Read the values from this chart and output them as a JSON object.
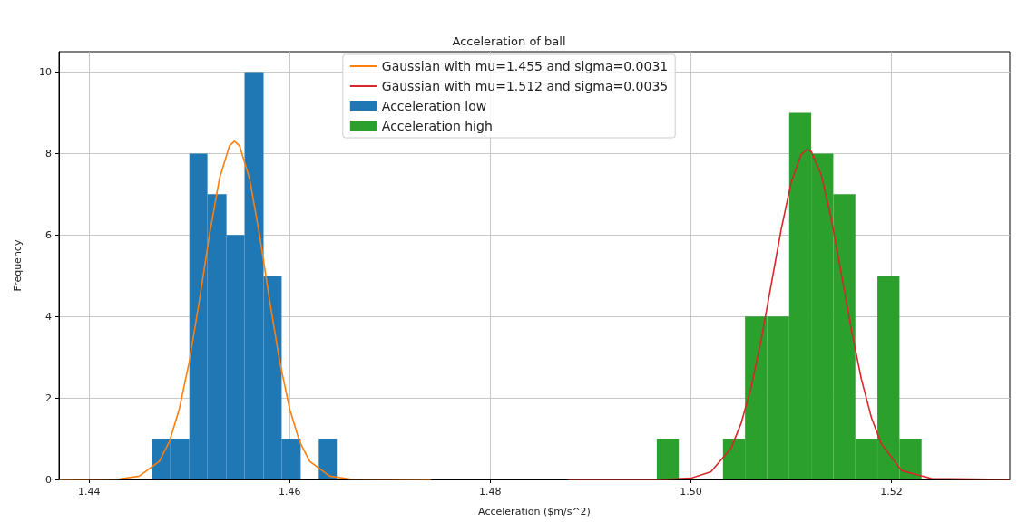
{
  "chart_data": {
    "type": "histogram",
    "title": "Acceleration of ball",
    "xlabel": "Acceleration ($m/s^2)",
    "ylabel": "Frequency",
    "xlim": [
      1.437,
      1.5318
    ],
    "xticks": [
      1.44,
      1.46,
      1.48,
      {
        "value": 1.5,
        "label": "1.50"
      },
      1.52
    ],
    "ylim": [
      0,
      10.5
    ],
    "yticks": [
      0,
      2,
      4,
      6,
      8,
      10
    ],
    "grid": true,
    "legend": "top",
    "series": [
      {
        "type": "line",
        "name": "Gaussian with mu=1.455 and sigma=0.0031",
        "color": "#ff7f0e",
        "x": [
          1.437,
          1.443,
          1.445,
          1.447,
          1.448,
          1.449,
          1.45,
          1.451,
          1.452,
          1.453,
          1.454,
          1.4545,
          1.455,
          1.456,
          1.457,
          1.458,
          1.459,
          1.46,
          1.461,
          1.462,
          1.464,
          1.466,
          1.4741
        ],
        "values": [
          0,
          0.01,
          0.08,
          0.44,
          0.92,
          1.73,
          2.9,
          4.39,
          6,
          7.38,
          8.19,
          8.3,
          8.19,
          7.38,
          6,
          4.39,
          2.9,
          1.73,
          0.92,
          0.44,
          0.08,
          0.01,
          0
        ]
      },
      {
        "type": "line",
        "name": "Gaussian with mu=1.512 and sigma=0.0035",
        "color": "#d62728",
        "x": [
          1.4877,
          1.497,
          1.5,
          1.502,
          1.504,
          1.505,
          1.506,
          1.507,
          1.508,
          1.509,
          1.51,
          1.511,
          1.5116,
          1.512,
          1.513,
          1.514,
          1.515,
          1.516,
          1.517,
          1.518,
          1.519,
          1.521,
          1.524,
          1.5318
        ],
        "values": [
          0,
          0,
          0.03,
          0.19,
          0.76,
          1.37,
          2.25,
          3.41,
          4.77,
          6.13,
          7.29,
          7.98,
          8.1,
          8.05,
          7.48,
          6.4,
          5.05,
          3.68,
          2.46,
          1.52,
          0.87,
          0.22,
          0.02,
          0
        ]
      },
      {
        "name": "Acceleration low",
        "color": "#1f77b4",
        "bins": [
          1.4463,
          1.4481,
          1.45,
          1.4518,
          1.4537,
          1.4555,
          1.4574,
          1.4592,
          1.4611,
          1.4629,
          1.4647
        ],
        "values": [
          1,
          1,
          8,
          7,
          6,
          10,
          5,
          1,
          0,
          1
        ]
      },
      {
        "name": "Acceleration high",
        "color": "#2ca02c",
        "bins": [
          1.4966,
          1.4988,
          1.501,
          1.5032,
          1.5054,
          1.5076,
          1.5098,
          1.512,
          1.5142,
          1.5164,
          1.5186,
          1.5208,
          1.523
        ],
        "values": [
          1,
          0,
          0,
          1,
          4,
          4,
          9,
          8,
          7,
          1,
          5,
          1
        ]
      }
    ]
  }
}
